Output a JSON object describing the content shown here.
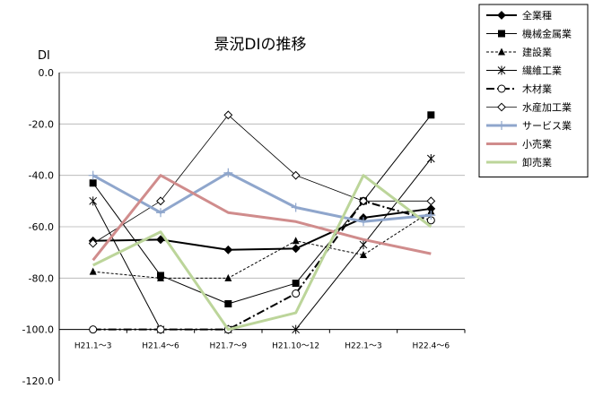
{
  "chart_data": {
    "type": "line",
    "title": "景況DIの推移",
    "xlabel": "",
    "ylabel": "DI",
    "ylim": [
      -120,
      0
    ],
    "yticks": [
      "0.0",
      "-20.0",
      "-40.0",
      "-60.0",
      "-80.0",
      "-100.0",
      "-120.0"
    ],
    "ytick_values": [
      0,
      -20,
      -40,
      -60,
      -80,
      -100,
      -120
    ],
    "grid": "horizontal",
    "legend_position": "right",
    "categories": [
      "H21.1～3",
      "H21.4～6",
      "H21.7～9",
      "H21.10～12",
      "H22.1～3",
      "H22.4～6"
    ],
    "series": [
      {
        "name": "全業種",
        "color": "#000000",
        "width": 2,
        "dash": "",
        "marker": "diamond-filled",
        "values": [
          -65.5,
          -65,
          -69,
          -68.5,
          -56.5,
          -53
        ]
      },
      {
        "name": "機械金属業",
        "color": "#000000",
        "width": 1,
        "dash": "",
        "marker": "square-filled",
        "values": [
          -43,
          -79,
          -90,
          -82,
          -50,
          -16.5
        ]
      },
      {
        "name": "建設業",
        "color": "#000000",
        "width": 1,
        "dash": "3,2",
        "marker": "triangle-filled",
        "values": [
          -77.5,
          -80,
          -80,
          -65.5,
          -71,
          -54
        ]
      },
      {
        "name": "繊維工業",
        "color": "#000000",
        "width": 1,
        "dash": "",
        "marker": "asterisk",
        "values": [
          -50,
          -100,
          -100,
          -100,
          -67,
          -33.5
        ]
      },
      {
        "name": "木材業",
        "color": "#000000",
        "width": 2,
        "dash": "9,3,2,3",
        "marker": "circle-open",
        "values": [
          -100,
          -100,
          -100,
          -86,
          -50,
          -57.5
        ]
      },
      {
        "name": "水産加工業",
        "color": "#000000",
        "width": 0.8,
        "dash": "",
        "marker": "diamond-open",
        "values": [
          -66.5,
          -50,
          -16.5,
          -40,
          -50,
          -50
        ]
      },
      {
        "name": "サービス業",
        "color": "#8fa6cc",
        "width": 3,
        "dash": "",
        "marker": "plus",
        "values": [
          -40,
          -54.5,
          -39,
          -52.5,
          -58,
          -55.5
        ]
      },
      {
        "name": "小売業",
        "color": "#d08c8c",
        "width": 3,
        "dash": "",
        "marker": "none",
        "values": [
          -73,
          -40,
          -54.5,
          -58,
          -65,
          -70.5
        ]
      },
      {
        "name": "卸売業",
        "color": "#bcd59a",
        "width": 3,
        "dash": "",
        "marker": "none",
        "values": [
          -75,
          -62,
          -100,
          -93.5,
          -40,
          -60
        ]
      }
    ]
  }
}
